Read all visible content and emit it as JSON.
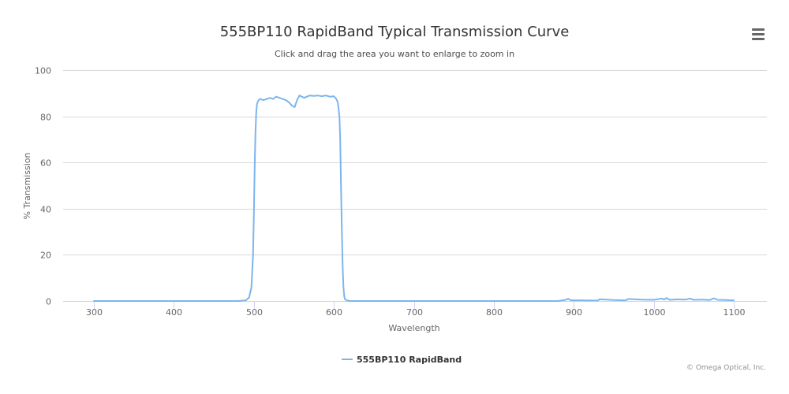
{
  "menu": {
    "icon": "hamburger-menu-icon"
  },
  "credits": "© Omega Optical, Inc.",
  "colors": {
    "series": "#7cb5ec",
    "grid": "#d8d8d8",
    "axis": "#ccd6eb",
    "text": "#666666"
  },
  "chart_data": {
    "type": "line",
    "title": "555BP110 RapidBand Typical Transmission Curve",
    "subtitle": "Click and drag the area you want to enlarge to zoom in",
    "xlabel": "Wavelength",
    "ylabel": "% Transmission",
    "xlim": [
      300,
      1100
    ],
    "ylim": [
      0,
      100
    ],
    "x_ticks": [
      300,
      400,
      500,
      600,
      700,
      800,
      900,
      1000,
      1100
    ],
    "y_ticks": [
      0,
      20,
      40,
      60,
      80,
      100
    ],
    "grid": true,
    "legend_position": "bottom-center",
    "series": [
      {
        "name": "555BP110 RapidBand",
        "color": "#7cb5ec",
        "x": [
          300,
          400,
          480,
          490,
          494,
          497,
          499,
          500,
          501,
          502,
          503,
          504,
          506,
          508,
          512,
          516,
          520,
          524,
          528,
          532,
          536,
          540,
          544,
          548,
          551,
          554,
          557,
          560,
          563,
          566,
          570,
          575,
          580,
          585,
          590,
          595,
          600,
          603,
          605,
          607,
          608,
          609,
          610,
          611,
          612,
          613,
          614,
          616,
          620,
          650,
          700,
          800,
          880,
          890,
          893,
          896,
          905,
          930,
          932,
          950,
          965,
          968,
          985,
          1000,
          1010,
          1013,
          1016,
          1020,
          1030,
          1040,
          1045,
          1050,
          1060,
          1070,
          1075,
          1080,
          1090,
          1100
        ],
        "y": [
          0,
          0,
          0,
          0.3,
          1.5,
          6,
          20,
          38,
          58,
          73,
          82,
          85.5,
          87,
          87.5,
          87,
          87.5,
          88,
          87.5,
          88.5,
          88,
          87.5,
          87,
          86,
          84.5,
          84,
          87,
          89,
          88.5,
          88,
          88.5,
          89,
          88.8,
          89,
          88.7,
          89,
          88.5,
          88.7,
          87.5,
          86,
          80,
          70,
          50,
          30,
          15,
          6,
          2,
          0.8,
          0.3,
          0,
          0,
          0,
          0,
          0,
          0.5,
          1,
          0.3,
          0.3,
          0.2,
          0.8,
          0.4,
          0.3,
          0.9,
          0.6,
          0.5,
          1.1,
          0.6,
          1.3,
          0.5,
          0.7,
          0.6,
          1.1,
          0.5,
          0.6,
          0.4,
          1.2,
          0.5,
          0.4,
          0.3
        ]
      }
    ]
  }
}
